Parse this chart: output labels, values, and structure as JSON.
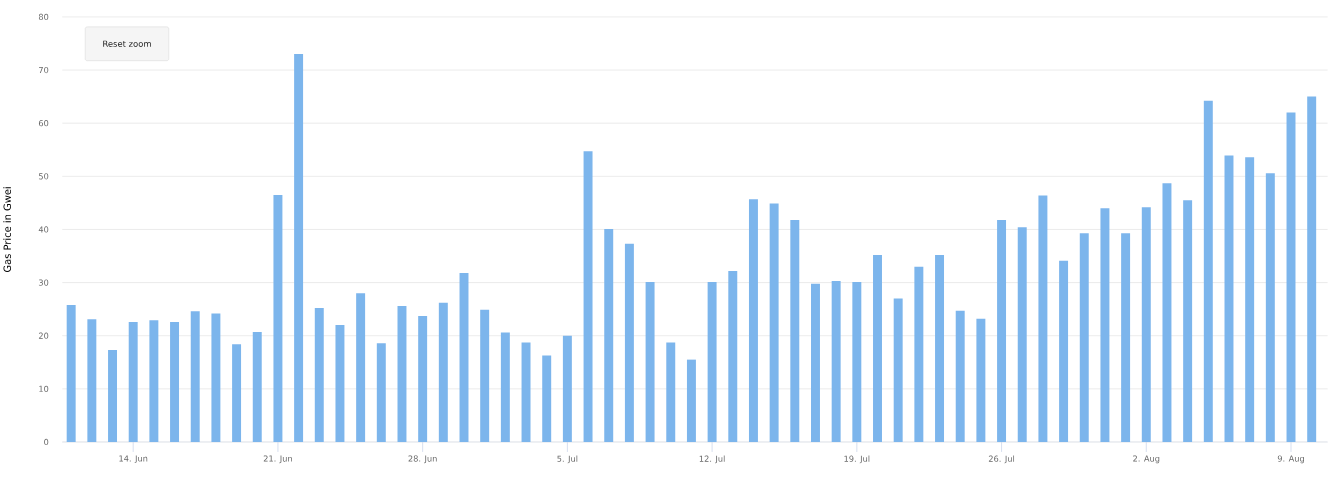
{
  "chart_data": {
    "type": "bar",
    "ylabel": "Gas Price in Gwei",
    "categories": [
      null,
      null,
      null,
      "14. Jun",
      null,
      null,
      null,
      null,
      null,
      null,
      "21. Jun",
      null,
      null,
      null,
      null,
      null,
      null,
      "28. Jun",
      null,
      null,
      null,
      null,
      null,
      null,
      "5. Jul",
      null,
      null,
      null,
      null,
      null,
      null,
      "12. Jul",
      null,
      null,
      null,
      null,
      null,
      null,
      "19. Jul",
      null,
      null,
      null,
      null,
      null,
      null,
      "26. Jul",
      null,
      null,
      null,
      null,
      null,
      null,
      "2. Aug",
      null,
      null,
      null,
      null,
      null,
      null,
      "9. Aug",
      null
    ],
    "values": [
      25.8,
      23.1,
      17.3,
      22.6,
      22.9,
      22.6,
      24.6,
      24.2,
      18.4,
      20.7,
      46.5,
      73.0,
      25.2,
      22.0,
      28.0,
      18.6,
      25.6,
      23.7,
      26.2,
      31.8,
      24.9,
      20.6,
      18.7,
      16.3,
      20.0,
      54.7,
      40.1,
      37.3,
      30.1,
      18.7,
      15.5,
      30.1,
      32.2,
      45.7,
      44.9,
      41.8,
      29.8,
      30.3,
      30.1,
      35.2,
      27.0,
      33.0,
      35.2,
      24.7,
      23.2,
      41.8,
      40.4,
      46.4,
      34.1,
      39.3,
      44.0,
      39.3,
      44.2,
      48.7,
      45.5,
      64.2,
      53.9,
      53.6,
      50.6,
      62.0,
      65.0
    ],
    "color": "#7cb5ec",
    "ylim": [
      0,
      80
    ],
    "yticks": [
      0,
      10,
      20,
      30,
      40,
      50,
      60,
      70,
      80
    ],
    "grid": "y",
    "annotations": [
      "Reset zoom"
    ]
  }
}
